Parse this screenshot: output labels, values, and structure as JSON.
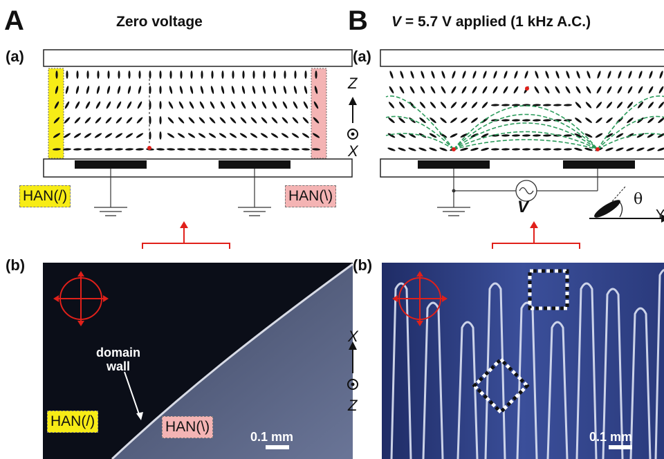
{
  "panelA": {
    "letter": "A",
    "heading": "Zero voltage",
    "sub_a": "(a)",
    "sub_b": "(b)",
    "han_left": "HAN(/)",
    "han_right": "HAN(\\)",
    "micro_label_wall_line1": "domain",
    "micro_label_wall_line2": "wall",
    "micro_han_left": "HAN(/)",
    "micro_han_right": "HAN(\\)",
    "scale": "0.1 mm"
  },
  "panelB": {
    "letter": "B",
    "heading_v": "V",
    "heading_rest": " = 5.7 V applied (1 kHz A.C.)",
    "sub_a": "(a)",
    "sub_b": "(b)",
    "axis_z": "Z",
    "axis_x": "X",
    "axis_x2": "X",
    "axis_z2": "Z",
    "voltage_label": "V",
    "theta": "θ",
    "axis_y": "Y",
    "scale": "0.1 mm"
  },
  "colors": {
    "yellow_box": "#f7ec16",
    "pink_box": "#f4b4b4",
    "red_arrow": "#e0201a",
    "green_field": "#2a9a5a",
    "electrode": "#111111"
  }
}
